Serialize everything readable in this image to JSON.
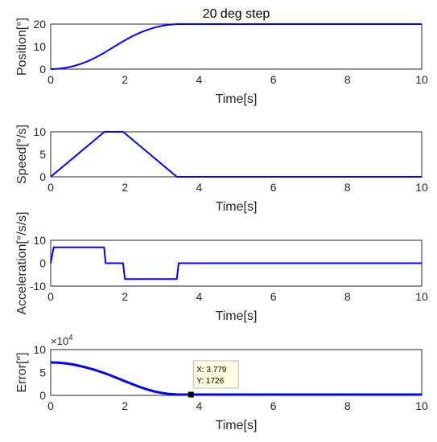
{
  "chart_data": [
    {
      "type": "line",
      "title": "20 deg step",
      "xlabel": "Time[s]",
      "ylabel": "Position[°]",
      "xlim": [
        0,
        10
      ],
      "ylim": [
        0,
        20
      ],
      "xticks": [
        "0",
        "2",
        "4",
        "6",
        "8",
        "10"
      ],
      "yticks": [
        "0",
        "10",
        "20"
      ],
      "grid": true,
      "line_color": "#0000ff",
      "x": [
        0,
        0.2,
        0.4,
        0.6,
        0.8,
        1.0,
        1.2,
        1.44,
        1.6,
        1.8,
        2.0,
        2.2,
        2.4,
        2.6,
        2.8,
        3.0,
        3.2,
        3.4,
        10
      ],
      "values": [
        0,
        0.14,
        0.56,
        1.26,
        2.24,
        3.5,
        5.04,
        7.26,
        8.86,
        10.86,
        12.82,
        14.6,
        16.14,
        17.44,
        18.48,
        19.24,
        19.73,
        20,
        20
      ]
    },
    {
      "type": "line",
      "title": "",
      "xlabel": "Time[s]",
      "ylabel": "Speed[°/s]",
      "xlim": [
        0,
        10
      ],
      "ylim": [
        0,
        10
      ],
      "xticks": [
        "0",
        "2",
        "4",
        "6",
        "8",
        "10"
      ],
      "yticks": [
        "0",
        "5",
        "10"
      ],
      "grid": true,
      "line_color": "#0000ff",
      "x": [
        0,
        1.45,
        1.95,
        3.4,
        10
      ],
      "values": [
        0,
        10,
        10,
        0,
        0
      ]
    },
    {
      "type": "line",
      "title": "",
      "xlabel": "Time[s]",
      "ylabel": "Acceleration[°/s/s]",
      "xlim": [
        0,
        10
      ],
      "ylim": [
        -10,
        10
      ],
      "xticks": [
        "0",
        "2",
        "4",
        "6",
        "8",
        "10"
      ],
      "yticks": [
        "-10",
        "0",
        "10"
      ],
      "grid": true,
      "line_color": "#0000ff",
      "x": [
        0,
        0.08,
        1.44,
        1.48,
        1.95,
        2.0,
        3.4,
        3.45,
        10
      ],
      "values": [
        0,
        6.9,
        6.9,
        0,
        0,
        -6.9,
        -6.9,
        0,
        0
      ]
    },
    {
      "type": "line",
      "title": "",
      "xlabel": "Time[s]",
      "ylabel": "Error[″]",
      "xlim": [
        0,
        10
      ],
      "ylim": [
        0,
        100000
      ],
      "xticks": [
        "0",
        "2",
        "4",
        "6",
        "8",
        "10"
      ],
      "yticks": [
        "0",
        "5",
        "10"
      ],
      "y_exponent": "×10",
      "y_exponent_power": "4",
      "grid": true,
      "line_color": "#0000ff",
      "x": [
        0,
        0.2,
        0.4,
        0.6,
        0.8,
        1.0,
        1.2,
        1.4,
        1.6,
        1.8,
        2.0,
        2.2,
        2.4,
        2.6,
        2.8,
        3.0,
        3.2,
        3.4,
        3.6,
        3.779,
        10
      ],
      "values": [
        72000,
        71500,
        70000,
        67500,
        64000,
        60000,
        55500,
        50000,
        44000,
        37500,
        31000,
        24500,
        18500,
        13000,
        8500,
        5200,
        3000,
        2000,
        1800,
        1726,
        1726
      ],
      "datatip": {
        "x": 3.779,
        "y": 1726,
        "label_x": "X: 3.779",
        "label_y": "Y: 1726"
      }
    }
  ]
}
